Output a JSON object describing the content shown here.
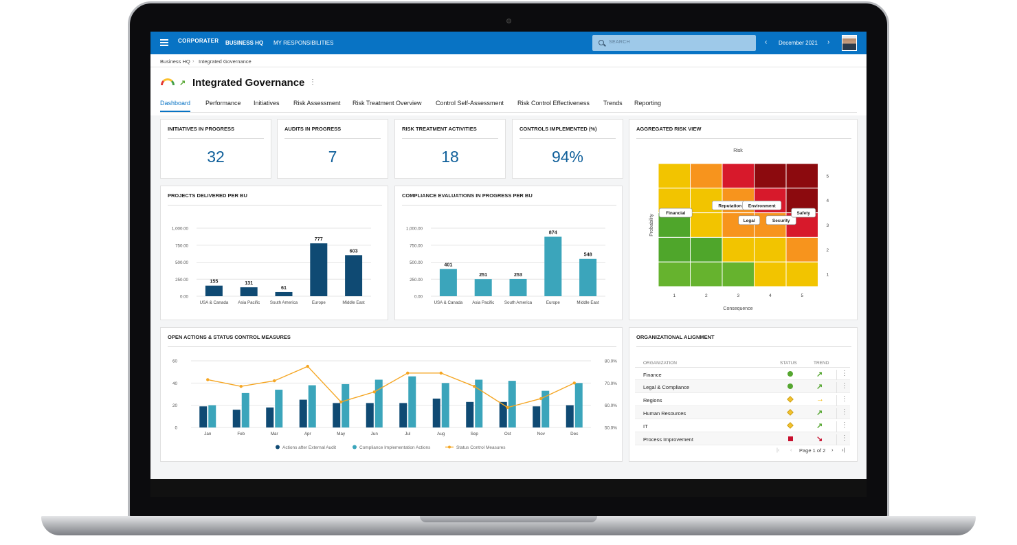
{
  "topbar": {
    "logo": "CORPORATER",
    "nav_business_hq": "BUSINESS HQ",
    "nav_responsibilities": "MY RESPONSIBILITIES",
    "search_placeholder": "SEARCH",
    "period_prev": "‹",
    "period": "December 2021",
    "period_next": "›"
  },
  "breadcrumb": {
    "root": "Business HQ",
    "sep": "›",
    "current": "Integrated Governance"
  },
  "page": {
    "title": "Integrated Governance",
    "menu": "⋮"
  },
  "tabs": [
    {
      "label": "Dashboard"
    },
    {
      "label": "Performance"
    },
    {
      "label": "Initiatives"
    },
    {
      "label": "Risk Assessment"
    },
    {
      "label": "Risk Treatment Overview"
    },
    {
      "label": "Control Self-Assessment"
    },
    {
      "label": "Risk Control Effectiveness"
    },
    {
      "label": "Trends"
    },
    {
      "label": "Reporting"
    }
  ],
  "kpis": [
    {
      "title": "INITIATIVES IN PROGRESS",
      "value": "32"
    },
    {
      "title": "AUDITS IN PROGRESS",
      "value": "7"
    },
    {
      "title": "RISK TREATMENT ACTIVITIES",
      "value": "18"
    },
    {
      "title": "CONTROLS IMPLEMENTED (%)",
      "value": "94%"
    }
  ],
  "colors": {
    "brand": "#0873c4",
    "navy": "#0f4a73",
    "teal": "#3ba5bb",
    "orange": "#f5a623"
  },
  "chart_data": [
    {
      "type": "bar",
      "title": "PROJECTS DELIVERED PER BU",
      "categories": [
        "USA & Canada",
        "Asia Pacific",
        "South America",
        "Europe",
        "Middle East"
      ],
      "values": [
        155,
        131,
        61,
        777,
        603
      ],
      "ylim": [
        0,
        1000
      ],
      "yticks": [
        "0.00",
        "250.00",
        "500.00",
        "750.00",
        "1,000.00"
      ],
      "color": "#0f4a73",
      "grid": true
    },
    {
      "type": "bar",
      "title": "COMPLIANCE EVALUATIONS IN PROGRESS PER BU",
      "categories": [
        "USA & Canada",
        "Asia Pacific",
        "South America",
        "Europe",
        "Middle East"
      ],
      "values": [
        401,
        251,
        253,
        874,
        548
      ],
      "ylim": [
        0,
        1000
      ],
      "yticks": [
        "0.00",
        "250.00",
        "500.00",
        "750.00",
        "1,000.00"
      ],
      "color": "#3ba5bb",
      "grid": true
    },
    {
      "type": "bar",
      "title": "OPEN ACTIONS & STATUS CONTROL MEASURES",
      "categories": [
        "Jan",
        "Feb",
        "Mar",
        "Apr",
        "May",
        "Jun",
        "Jul",
        "Aug",
        "Sep",
        "Oct",
        "Nov",
        "Dec"
      ],
      "series": [
        {
          "name": "Actions after External Audit",
          "values": [
            19,
            16,
            18,
            25,
            22,
            22,
            22,
            26,
            23,
            23,
            19,
            20
          ],
          "color": "#0f4a73"
        },
        {
          "name": "Compliance Implementation Actions",
          "values": [
            20,
            31,
            34,
            38,
            39,
            43,
            46,
            40,
            43,
            42,
            33,
            40
          ],
          "color": "#3ba5bb"
        },
        {
          "name": "Status Control Measures",
          "type": "line",
          "axis": "right",
          "values": [
            71.5,
            68.5,
            71,
            77.5,
            61.5,
            66,
            74.5,
            74.5,
            68.5,
            59,
            63,
            70
          ],
          "color": "#f5a623"
        }
      ],
      "ylim": [
        0,
        60
      ],
      "yticks": [
        "0",
        "20",
        "40",
        "60"
      ],
      "y2lim": [
        50,
        80
      ],
      "y2ticks": [
        "50.0%",
        "60.0%",
        "70.0%",
        "80.0%"
      ],
      "legend": "bottom",
      "grid": true
    },
    {
      "type": "heatmap",
      "title": "AGGREGATED RISK VIEW",
      "subtitle": "Risk",
      "xlabel": "Consequence",
      "ylabel": "Probability",
      "x": [
        "1",
        "2",
        "3",
        "4",
        "5"
      ],
      "y": [
        "5",
        "4",
        "3",
        "2",
        "1"
      ],
      "cells": [
        [
          "#f2c400",
          "#f7941d",
          "#d7192b",
          "#8c0a0e",
          "#8c0a0e"
        ],
        [
          "#f2c400",
          "#f2c400",
          "#f7941d",
          "#d7192b",
          "#8c0a0e"
        ],
        [
          "#4fa62b",
          "#f2c400",
          "#f7941d",
          "#f7941d",
          "#d7192b"
        ],
        [
          "#4fa62b",
          "#4fa62b",
          "#f2c400",
          "#f2c400",
          "#f7941d"
        ],
        [
          "#66b32e",
          "#66b32e",
          "#66b32e",
          "#f2c400",
          "#f2c400"
        ]
      ],
      "risks": [
        {
          "label": "Financial",
          "consequence": 1.5,
          "probability": 3.5
        },
        {
          "label": "Reputation",
          "consequence": 3.2,
          "probability": 3.8
        },
        {
          "label": "Environment",
          "consequence": 4.2,
          "probability": 3.8
        },
        {
          "label": "Legal",
          "consequence": 3.8,
          "probability": 3.2
        },
        {
          "label": "Security",
          "consequence": 4.8,
          "probability": 3.2
        },
        {
          "label": "Safety",
          "consequence": 5.5,
          "probability": 3.5
        }
      ]
    }
  ],
  "org": {
    "title": "ORGANIZATIONAL ALIGNMENT",
    "headers": {
      "organization": "ORGANIZATION",
      "status": "STATUS",
      "trend": "TREND"
    },
    "rows": [
      {
        "name": "Finance",
        "status": "green",
        "trend": "↗",
        "trend_color": "#55a630"
      },
      {
        "name": "Legal & Compliance",
        "status": "green",
        "trend": "↗",
        "trend_color": "#55a630"
      },
      {
        "name": "Regions",
        "status": "yellow",
        "trend": "→",
        "trend_color": "#f2b705"
      },
      {
        "name": "Human Resources",
        "status": "yellow",
        "trend": "↗",
        "trend_color": "#55a630"
      },
      {
        "name": "IT",
        "status": "yellow",
        "trend": "↗",
        "trend_color": "#55a630"
      },
      {
        "name": "Process Improvement",
        "status": "red",
        "trend": "↘",
        "trend_color": "#c8102e"
      }
    ],
    "row_menu": "⋮",
    "pagination": {
      "first": "|‹",
      "prev": "‹",
      "label": "Page 1 of 2",
      "next": "›",
      "last": "›|"
    }
  }
}
